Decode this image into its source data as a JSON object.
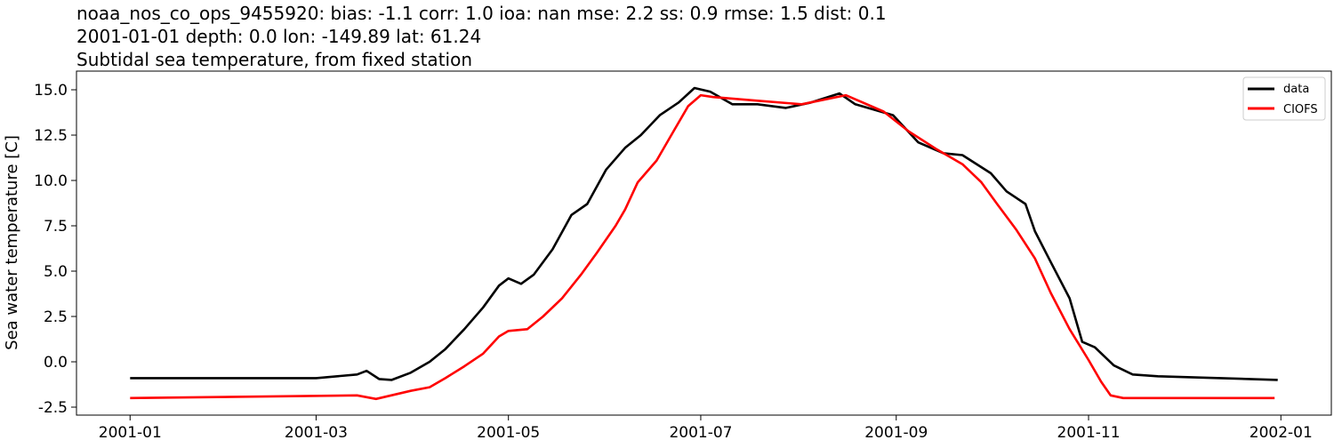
{
  "chart_data": {
    "type": "line",
    "title_lines": [
      "noaa_nos_co_ops_9455920: bias: -1.1  corr: 1.0  ioa: nan  mse: 2.2  ss: 0.9  rmse: 1.5  dist: 0.1",
      "2001-01-01 depth: 0.0 lon: -149.89 lat: 61.24",
      "Subtidal sea temperature, from fixed station"
    ],
    "xlabel": "",
    "ylabel": "Sea water temperature [C]",
    "xlim": [
      "2000-12-15",
      "2002-01-17"
    ],
    "ylim": [
      -2.94,
      16.03
    ],
    "xticks": [
      "2001-01",
      "2001-03",
      "2001-05",
      "2001-07",
      "2001-09",
      "2001-11",
      "2002-01"
    ],
    "yticks": [
      "-2.5",
      "0.0",
      "2.5",
      "5.0",
      "7.5",
      "10.0",
      "12.5",
      "15.0"
    ],
    "grid": false,
    "legend_placement": "top-right",
    "series": [
      {
        "name": "data",
        "color": "#000000",
        "x": [
          "2001-01-01",
          "2001-03-01",
          "2001-03-14",
          "2001-03-17",
          "2001-03-21",
          "2001-03-25",
          "2001-03-31",
          "2001-04-06",
          "2001-04-11",
          "2001-04-17",
          "2001-04-23",
          "2001-04-28",
          "2001-05-01",
          "2001-05-05",
          "2001-05-09",
          "2001-05-15",
          "2001-05-21",
          "2001-05-26",
          "2001-06-01",
          "2001-06-07",
          "2001-06-12",
          "2001-06-18",
          "2001-06-24",
          "2001-06-29",
          "2001-07-04",
          "2001-07-11",
          "2001-07-19",
          "2001-07-28",
          "2001-08-05",
          "2001-08-14",
          "2001-08-19",
          "2001-08-31",
          "2001-09-08",
          "2001-09-16",
          "2001-09-22",
          "2001-10-01",
          "2001-10-06",
          "2001-10-12",
          "2001-10-15",
          "2001-10-20",
          "2001-10-26",
          "2001-10-30",
          "2001-11-03",
          "2001-11-09",
          "2001-11-15",
          "2001-11-23",
          "2001-12-31"
        ],
        "y": [
          -0.9,
          -0.9,
          -0.7,
          -0.5,
          -0.95,
          -1.0,
          -0.6,
          0.0,
          0.7,
          1.8,
          3.0,
          4.2,
          4.6,
          4.3,
          4.8,
          6.2,
          8.1,
          8.7,
          10.6,
          11.8,
          12.5,
          13.6,
          14.3,
          15.1,
          14.9,
          14.2,
          14.2,
          14.0,
          14.3,
          14.8,
          14.2,
          13.6,
          12.1,
          11.5,
          11.4,
          10.4,
          9.4,
          8.7,
          7.2,
          5.5,
          3.5,
          1.1,
          0.8,
          -0.2,
          -0.7,
          -0.8,
          -1.0
        ]
      },
      {
        "name": "CIOFS",
        "color": "#ff0000",
        "x": [
          "2001-01-01",
          "2001-03-14",
          "2001-03-20",
          "2001-03-31",
          "2001-04-06",
          "2001-04-11",
          "2001-04-17",
          "2001-04-23",
          "2001-04-28",
          "2001-05-01",
          "2001-05-07",
          "2001-05-12",
          "2001-05-18",
          "2001-05-24",
          "2001-05-29",
          "2001-06-04",
          "2001-06-07",
          "2001-06-11",
          "2001-06-17",
          "2001-06-22",
          "2001-06-27",
          "2001-07-01",
          "2001-07-05",
          "2001-07-19",
          "2001-08-02",
          "2001-08-16",
          "2001-08-28",
          "2001-09-05",
          "2001-09-14",
          "2001-09-22",
          "2001-09-28",
          "2001-10-03",
          "2001-10-09",
          "2001-10-15",
          "2001-10-20",
          "2001-10-26",
          "2001-11-01",
          "2001-11-05",
          "2001-11-08",
          "2001-11-12",
          "2001-12-30"
        ],
        "y": [
          -2.0,
          -1.85,
          -2.05,
          -1.6,
          -1.4,
          -0.9,
          -0.25,
          0.45,
          1.4,
          1.7,
          1.8,
          2.5,
          3.5,
          4.8,
          6.0,
          7.5,
          8.4,
          9.9,
          11.1,
          12.6,
          14.1,
          14.7,
          14.6,
          14.4,
          14.2,
          14.7,
          13.8,
          12.7,
          11.7,
          10.9,
          9.9,
          8.7,
          7.3,
          5.7,
          3.8,
          1.8,
          0.1,
          -1.1,
          -1.85,
          -2.0,
          -2.0
        ]
      }
    ]
  }
}
